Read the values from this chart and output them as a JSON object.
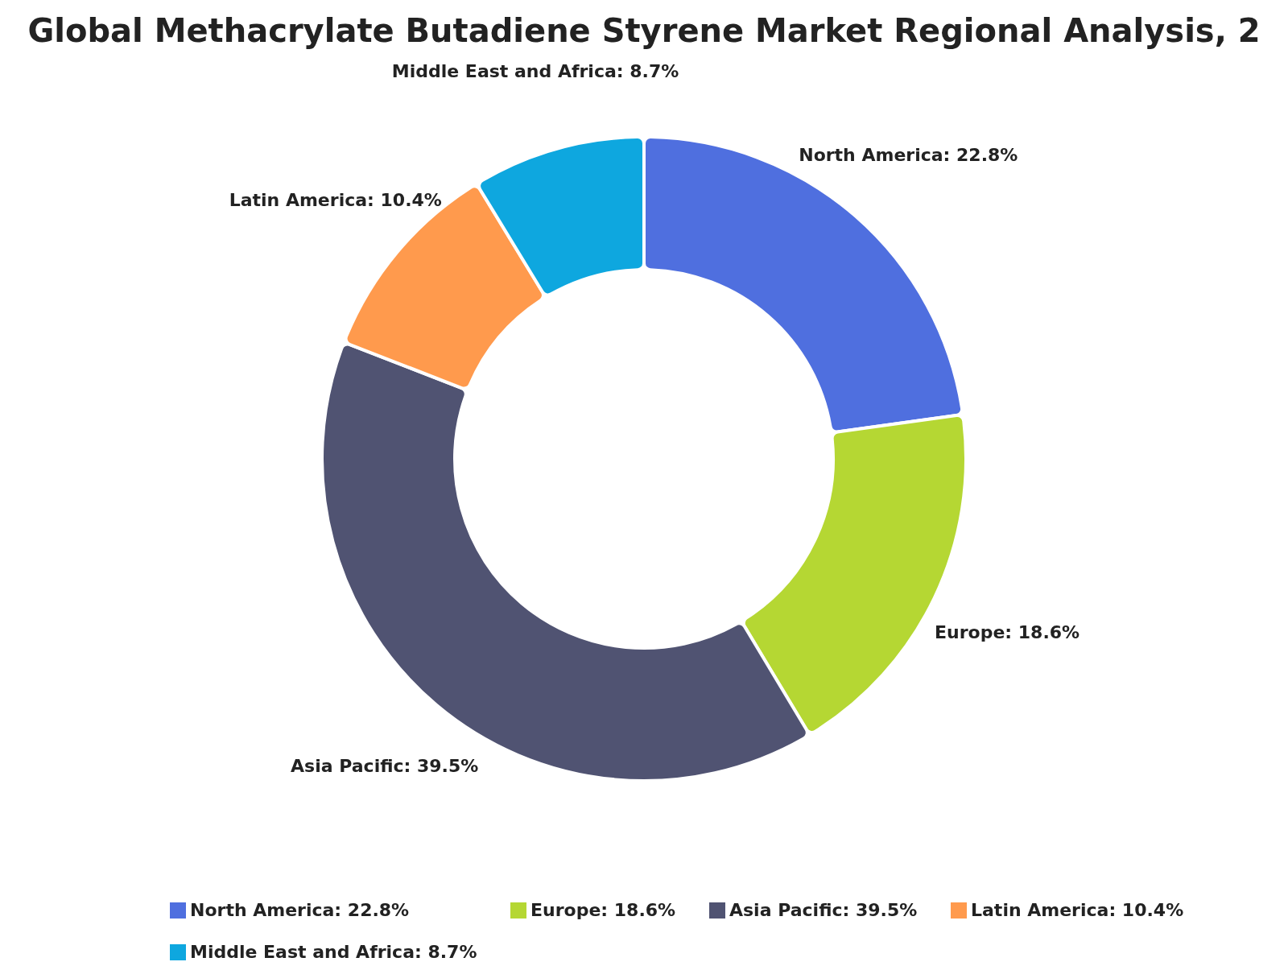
{
  "chart_data": {
    "type": "donut",
    "title": "Global Methacrylate Butadiene Styrene Market Regional Analysis, 2",
    "categories": [
      "North America: 22.8%",
      "Europe: 18.6%",
      "Asia Pacific: 39.5%",
      "Latin America: 10.4%",
      "Middle East and Africa: 8.7%"
    ],
    "values": [
      22.8,
      18.6,
      39.5,
      10.4,
      8.7
    ],
    "colors": [
      "#4f6fdf",
      "#b5d733",
      "#505372",
      "#ff9a4d",
      "#0ea7df"
    ],
    "legend": "bottom"
  }
}
